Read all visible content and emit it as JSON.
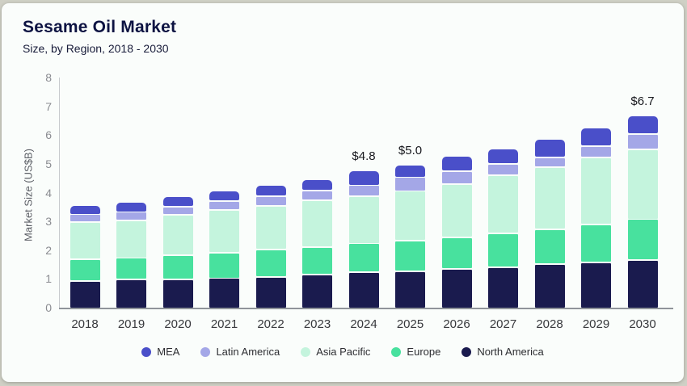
{
  "card": {
    "title": "Sesame Oil Market",
    "subtitle": "Size, by Region, 2018 - 2030"
  },
  "chart_data": {
    "type": "bar",
    "stacked": true,
    "title": "Sesame Oil Market",
    "subtitle": "Size, by Region, 2018 - 2030",
    "xlabel": "",
    "ylabel": "Market Size (US$B)",
    "ylim": [
      0,
      8
    ],
    "yticks": [
      0,
      1,
      2,
      3,
      4,
      5,
      6,
      7,
      8
    ],
    "grid": false,
    "legend_position": "bottom",
    "categories": [
      "2018",
      "2019",
      "2020",
      "2021",
      "2022",
      "2023",
      "2024",
      "2025",
      "2026",
      "2027",
      "2028",
      "2029",
      "2030"
    ],
    "series": [
      {
        "name": "North America",
        "color": "#1a1b4e",
        "values": [
          0.95,
          1.0,
          1.0,
          1.05,
          1.1,
          1.18,
          1.26,
          1.3,
          1.37,
          1.44,
          1.54,
          1.6,
          1.69
        ]
      },
      {
        "name": "Europe",
        "color": "#48e19e",
        "values": [
          0.75,
          0.75,
          0.85,
          0.88,
          0.95,
          0.94,
          1.0,
          1.05,
          1.1,
          1.17,
          1.21,
          1.32,
          1.41
        ]
      },
      {
        "name": "Asia Pacific",
        "color": "#c4f4dd",
        "values": [
          1.3,
          1.3,
          1.4,
          1.5,
          1.52,
          1.64,
          1.64,
          1.73,
          1.85,
          2.02,
          2.15,
          2.33,
          2.43
        ]
      },
      {
        "name": "Latin America",
        "color": "#a4a7e7",
        "values": [
          0.27,
          0.3,
          0.28,
          0.3,
          0.32,
          0.33,
          0.38,
          0.48,
          0.46,
          0.4,
          0.35,
          0.38,
          0.52
        ]
      },
      {
        "name": "MEA",
        "color": "#4a4fc9",
        "values": [
          0.33,
          0.35,
          0.37,
          0.37,
          0.41,
          0.41,
          0.52,
          0.44,
          0.52,
          0.52,
          0.65,
          0.65,
          0.65
        ]
      }
    ],
    "totals": [
      3.6,
      3.7,
      3.9,
      4.1,
      4.3,
      4.5,
      4.8,
      5.0,
      5.3,
      5.55,
      5.9,
      6.3,
      6.7
    ],
    "annotations": [
      {
        "category": "2024",
        "text": "$4.8"
      },
      {
        "category": "2025",
        "text": "$5.0"
      },
      {
        "category": "2030",
        "text": "$6.7"
      }
    ],
    "legend_order": [
      "MEA",
      "Latin America",
      "Asia Pacific",
      "Europe",
      "North America"
    ]
  }
}
